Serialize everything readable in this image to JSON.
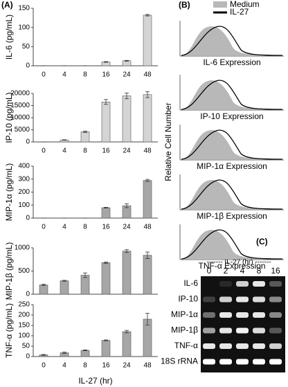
{
  "panel_labels": [
    "(A)",
    "(B)",
    "(C)"
  ],
  "chart_data": [
    {
      "type": "bar",
      "ylabel": "IL-6 (pg/mL)",
      "categories": [
        "0",
        "4",
        "8",
        "16",
        "24",
        "48"
      ],
      "values": [
        0,
        0,
        0,
        10,
        13,
        132
      ],
      "errors": [
        0,
        0,
        0,
        1,
        1,
        2
      ],
      "color": "#d4d4d4",
      "ylim": [
        0,
        150
      ],
      "yticks": [
        0,
        50,
        100,
        150
      ]
    },
    {
      "type": "bar",
      "ylabel": "IP-10 (pg/mL)",
      "categories": [
        "0",
        "4",
        "8",
        "16",
        "24",
        "48"
      ],
      "values": [
        0,
        800,
        4200,
        16500,
        19000,
        19500
      ],
      "errors": [
        0,
        100,
        300,
        1000,
        1200,
        1200
      ],
      "color": "#d4d4d4",
      "ylim": [
        0,
        20000
      ],
      "yticks": [
        0,
        5000,
        10000,
        15000,
        20000
      ]
    },
    {
      "type": "bar",
      "ylabel": "MIP-1α (pg/mL)",
      "categories": [
        "0",
        "4",
        "8",
        "16",
        "24",
        "48"
      ],
      "values": [
        0,
        0,
        0,
        80,
        95,
        290
      ],
      "errors": [
        0,
        0,
        0,
        3,
        15,
        8
      ],
      "color": "#a6a6a6",
      "ylim": [
        0,
        400
      ],
      "yticks": [
        0,
        100,
        200,
        300,
        400
      ]
    },
    {
      "type": "bar",
      "ylabel": "MIP-1β (pg/mL)",
      "values": [
        200,
        290,
        410,
        680,
        930,
        840
      ],
      "errors": [
        15,
        10,
        50,
        15,
        30,
        70
      ],
      "color": "#a6a6a6",
      "ylim": [
        0,
        1000
      ],
      "yticks": [
        0,
        500,
        1000
      ]
    },
    {
      "type": "bar",
      "ylabel": "TNF-α (pg/mL)",
      "xlabel": "IL-27 (hr)",
      "categories": [
        "0",
        "4",
        "8",
        "16",
        "24",
        "48"
      ],
      "values": [
        8,
        18,
        30,
        78,
        120,
        180
      ],
      "errors": [
        2,
        3,
        2,
        2,
        6,
        28
      ],
      "color": "#a6a6a6",
      "ylim": [
        0,
        250
      ],
      "yticks": [
        0,
        50,
        100,
        150,
        200,
        250
      ]
    }
  ],
  "histograms": {
    "legend": [
      "Medium",
      "IL-27"
    ],
    "ylabel": "Relative Cell Number",
    "panels": [
      "IL-6 Expression",
      "IP-10 Expression",
      "MIP-1α Expression",
      "MIP-1β Expression",
      "TNF-α Expression"
    ]
  },
  "gel": {
    "header": "------- IL-27 (hr) -------",
    "lanes": [
      "0",
      "2",
      "4",
      "8",
      "16"
    ],
    "rows": [
      {
        "label": "IL-6",
        "intensity": [
          0,
          0.1,
          0.8,
          0.9,
          0.3
        ]
      },
      {
        "label": "IP-10",
        "intensity": [
          0.2,
          0.8,
          0.9,
          0.85,
          0.5
        ]
      },
      {
        "label": "MIP-1α",
        "intensity": [
          0.4,
          0.9,
          0.9,
          0.9,
          0.5
        ]
      },
      {
        "label": "MIP-1β",
        "intensity": [
          0.6,
          0.9,
          0.95,
          0.85,
          0.3
        ]
      },
      {
        "label": "TNF-α",
        "intensity": [
          0.9,
          0.9,
          0.9,
          0.9,
          0.8
        ]
      },
      {
        "label": "18S rRNA",
        "intensity": [
          1,
          1,
          1,
          1,
          1
        ]
      }
    ]
  }
}
